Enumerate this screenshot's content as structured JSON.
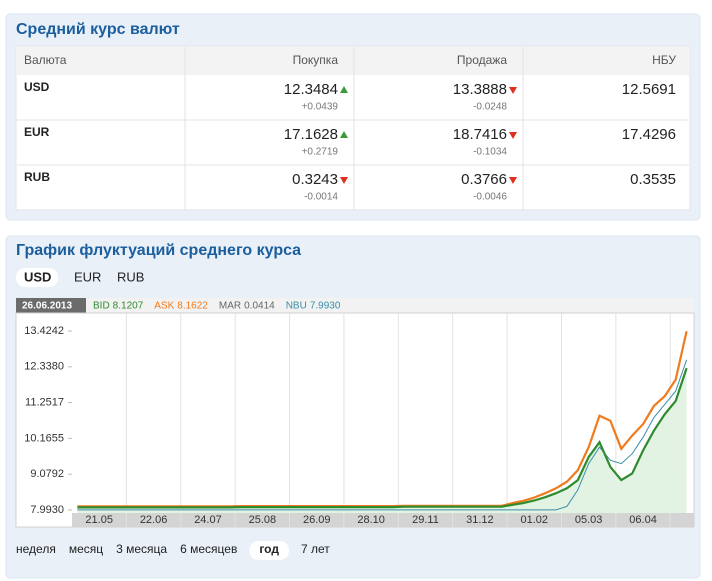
{
  "rates": {
    "title": "Средний курс валют",
    "columns": [
      "Валюта",
      "Покупка",
      "Продажа",
      "НБУ"
    ],
    "rows": [
      {
        "currency": "USD",
        "buy": {
          "value": "12.3484",
          "change": "+0.0439",
          "trend": "up"
        },
        "sell": {
          "value": "13.3888",
          "change": "-0.0248",
          "trend": "down"
        },
        "nbu": "12.5691"
      },
      {
        "currency": "EUR",
        "buy": {
          "value": "17.1628",
          "change": "+0.2719",
          "trend": "up"
        },
        "sell": {
          "value": "18.7416",
          "change": "-0.1034",
          "trend": "down"
        },
        "nbu": "17.4296"
      },
      {
        "currency": "RUB",
        "buy": {
          "value": "0.3243",
          "change": "-0.0014",
          "trend": "down"
        },
        "sell": {
          "value": "0.3766",
          "change": "-0.0046",
          "trend": "down"
        },
        "nbu": "0.3535"
      }
    ]
  },
  "chart_panel": {
    "title": "График флуктуаций среднего курса",
    "currencies": [
      "USD",
      "EUR",
      "RUB"
    ],
    "active_currency": 0,
    "date": "26.06.2013",
    "extra_indicator": {
      "name": "MAR",
      "value": "0.0414",
      "color": "#666666"
    },
    "periods": [
      "неделя",
      "месяц",
      "3 месяца",
      "6 месяцев",
      "год",
      "7 лет"
    ],
    "active_period": 4
  },
  "chart_data": {
    "type": "line",
    "categories": [
      null,
      null,
      "21.05",
      null,
      null,
      null,
      null,
      "22.06",
      null,
      null,
      null,
      null,
      "24.07",
      null,
      null,
      null,
      null,
      "25.08",
      null,
      null,
      null,
      null,
      "26.09",
      null,
      null,
      null,
      null,
      "28.10",
      null,
      null,
      null,
      null,
      "29.11",
      null,
      null,
      null,
      null,
      "31.12",
      null,
      null,
      null,
      null,
      "01.02",
      null,
      null,
      null,
      null,
      "05.03",
      null,
      null,
      null,
      null,
      "06.04",
      null,
      null,
      null,
      null
    ],
    "series": [
      {
        "name": "BID",
        "label_value": "8.1207",
        "color": "#2e8b2e",
        "area_color": "#e3f3e3",
        "values": [
          8.07,
          8.07,
          8.07,
          8.07,
          8.07,
          8.07,
          8.07,
          8.07,
          8.07,
          8.07,
          8.07,
          8.07,
          8.07,
          8.07,
          8.07,
          8.08,
          8.08,
          8.08,
          8.08,
          8.08,
          8.08,
          8.08,
          8.08,
          8.08,
          8.08,
          8.08,
          8.08,
          8.08,
          8.08,
          8.08,
          8.09,
          8.09,
          8.09,
          8.09,
          8.09,
          8.09,
          8.09,
          8.09,
          8.09,
          8.09,
          8.15,
          8.2,
          8.28,
          8.38,
          8.5,
          8.65,
          8.9,
          9.6,
          10.05,
          9.3,
          8.9,
          9.1,
          9.8,
          10.4,
          10.9,
          11.3,
          12.3
        ]
      },
      {
        "name": "ASK",
        "label_value": "8.1622",
        "color": "#f07a1c",
        "values": [
          8.1,
          8.1,
          8.1,
          8.1,
          8.1,
          8.1,
          8.1,
          8.1,
          8.1,
          8.1,
          8.1,
          8.1,
          8.1,
          8.1,
          8.1,
          8.11,
          8.11,
          8.11,
          8.11,
          8.11,
          8.11,
          8.11,
          8.11,
          8.11,
          8.11,
          8.11,
          8.11,
          8.11,
          8.11,
          8.11,
          8.12,
          8.12,
          8.12,
          8.12,
          8.12,
          8.12,
          8.12,
          8.12,
          8.12,
          8.12,
          8.2,
          8.27,
          8.37,
          8.5,
          8.65,
          8.85,
          9.2,
          9.9,
          10.85,
          10.7,
          9.85,
          10.25,
          10.6,
          11.15,
          11.45,
          11.95,
          13.42
        ]
      },
      {
        "name": "NBU",
        "label_value": "7.9930",
        "color": "#3a8fa8",
        "values": [
          7.993,
          7.993,
          7.993,
          7.993,
          7.993,
          7.993,
          7.993,
          7.993,
          7.993,
          7.993,
          7.993,
          7.993,
          7.993,
          7.993,
          7.993,
          7.993,
          7.993,
          7.993,
          7.993,
          7.993,
          7.993,
          7.993,
          7.993,
          7.993,
          7.993,
          7.993,
          7.993,
          7.993,
          7.993,
          7.993,
          7.993,
          7.993,
          7.993,
          7.993,
          7.993,
          7.993,
          7.993,
          7.993,
          7.993,
          7.993,
          7.993,
          7.993,
          7.993,
          7.993,
          7.993,
          8.1,
          8.6,
          9.4,
          9.9,
          9.5,
          9.4,
          9.7,
          10.2,
          10.8,
          11.2,
          11.6,
          12.55
        ]
      }
    ],
    "ylim": [
      7.9,
      13.82
    ],
    "yticks": [
      {
        "value": 7.993,
        "label": "7.9930"
      },
      9.0792,
      10.1655,
      11.2517,
      {
        "value": 12.338,
        "label": "12.3380"
      },
      13.4242
    ]
  }
}
